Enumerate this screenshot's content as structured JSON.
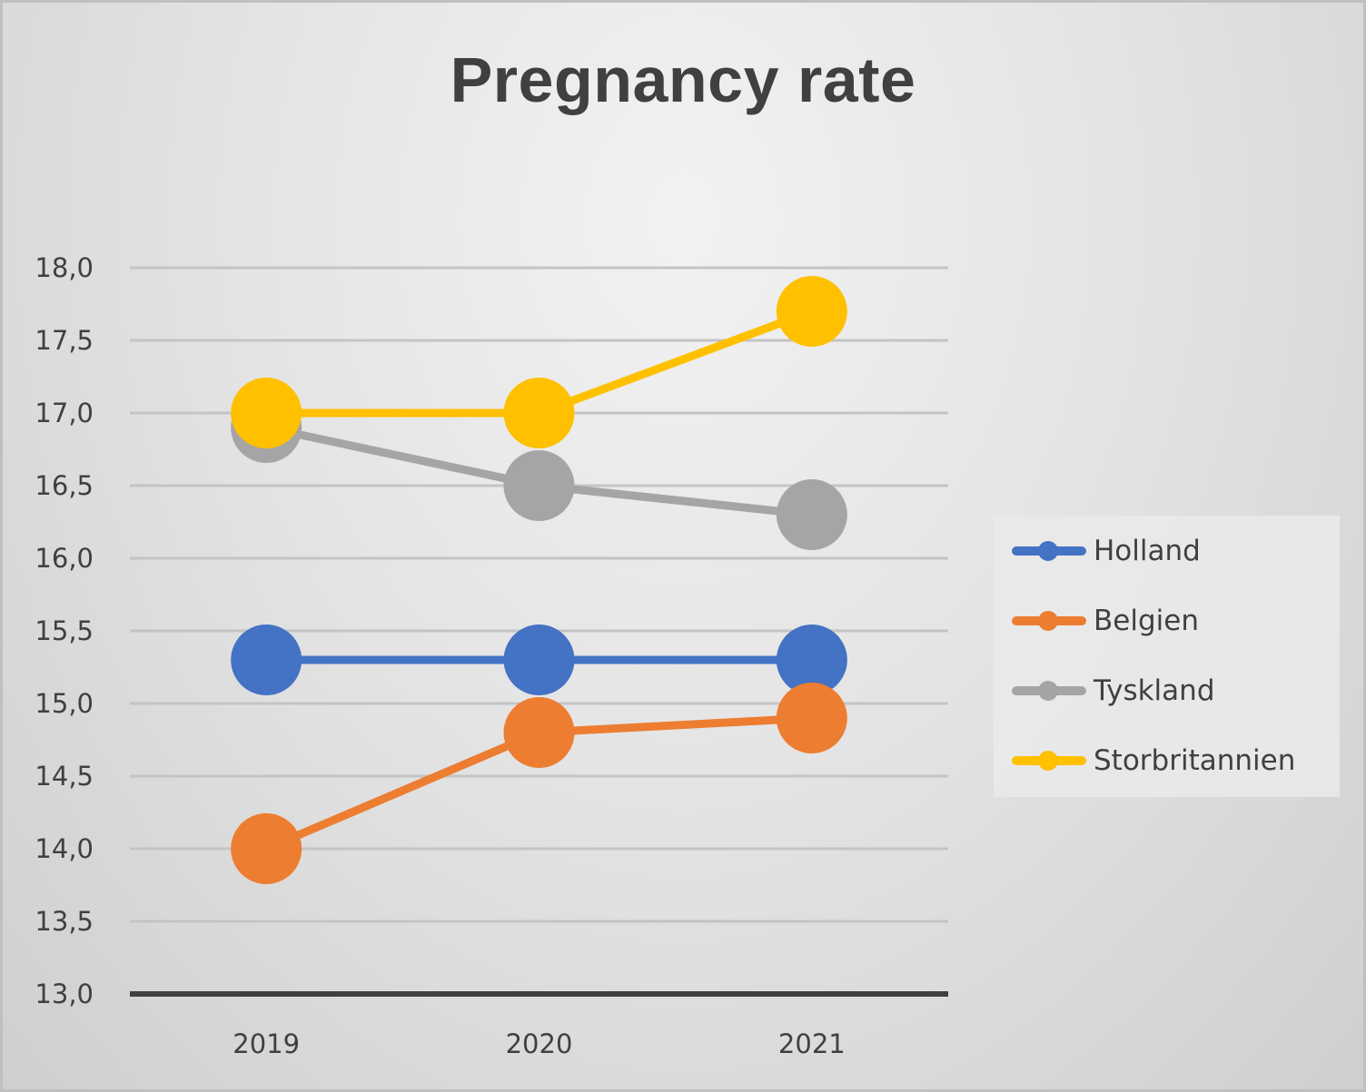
{
  "chart_data": {
    "type": "line",
    "title": "Pregnancy rate",
    "xlabel": "",
    "ylabel": "",
    "categories": [
      "2019",
      "2020",
      "2021"
    ],
    "ylim": [
      13.0,
      18.0
    ],
    "ytick_step": 0.5,
    "ytick_labels": [
      "13,0",
      "13,5",
      "14,0",
      "14,5",
      "15,0",
      "15,5",
      "16,0",
      "16,5",
      "17,0",
      "17,5",
      "18,0"
    ],
    "grid": true,
    "legend_position": "right",
    "series": [
      {
        "name": "Holland",
        "color": "#4472C4",
        "values": [
          15.3,
          15.3,
          15.3
        ]
      },
      {
        "name": "Belgien",
        "color": "#ED7D31",
        "values": [
          14.0,
          14.8,
          14.9
        ]
      },
      {
        "name": "Tyskland",
        "color": "#A5A5A5",
        "values": [
          16.9,
          16.5,
          16.3
        ]
      },
      {
        "name": "Storbritannien",
        "color": "#FFC000",
        "values": [
          17.0,
          17.0,
          17.7
        ]
      }
    ]
  }
}
